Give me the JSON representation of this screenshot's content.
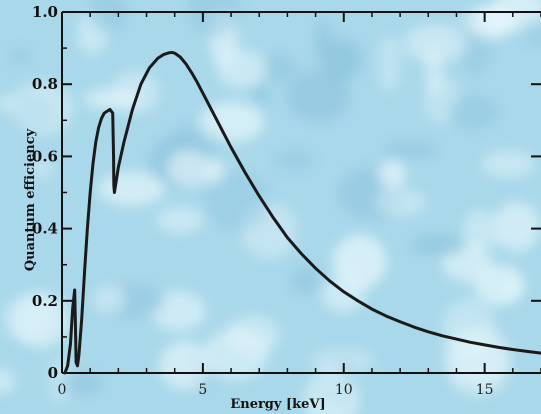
{
  "chart_data": {
    "type": "line",
    "title": "",
    "xlabel": "Energy [keV]",
    "ylabel": "Quantum efficiency",
    "xlim": [
      0,
      17
    ],
    "ylim": [
      0,
      1.0
    ],
    "x_ticks": [
      0,
      5,
      10,
      15
    ],
    "x_tick_labels": [
      "0",
      "5",
      "10",
      "15"
    ],
    "y_ticks": [
      0,
      0.2,
      0.4,
      0.6,
      0.8,
      1.0
    ],
    "y_tick_labels": [
      "0",
      "0.2",
      "0.4",
      "0.6",
      "0.8",
      "1.0"
    ],
    "grid": false,
    "legend": "none",
    "colors": {
      "line": "#1a1a1a",
      "background": "#bfe3f0"
    },
    "series": [
      {
        "x": [
          0.1,
          0.2,
          0.3,
          0.38,
          0.45,
          0.48,
          0.5,
          0.55,
          0.6,
          0.7,
          0.8,
          0.9,
          1.0,
          1.1,
          1.2,
          1.3,
          1.4,
          1.5,
          1.6,
          1.7,
          1.8,
          1.83,
          1.84,
          1.86,
          1.9,
          2.0,
          2.2,
          2.5,
          2.8,
          3.1,
          3.4,
          3.6,
          3.8,
          3.9,
          4.0,
          4.2,
          4.4,
          4.6,
          4.8,
          5.0,
          5.5,
          6.0,
          6.5,
          7.0,
          7.5,
          8.0,
          8.5,
          9.0,
          9.5,
          10.0,
          10.5,
          11.0,
          11.5,
          12.0,
          12.5,
          13.0,
          13.5,
          14.0,
          14.5,
          15.0,
          15.5,
          16.0,
          16.5,
          17.0
        ],
        "y": [
          0.0,
          0.02,
          0.08,
          0.18,
          0.23,
          0.12,
          0.03,
          0.02,
          0.05,
          0.15,
          0.28,
          0.4,
          0.5,
          0.58,
          0.64,
          0.68,
          0.705,
          0.72,
          0.725,
          0.73,
          0.72,
          0.6,
          0.52,
          0.5,
          0.52,
          0.57,
          0.64,
          0.73,
          0.8,
          0.845,
          0.872,
          0.882,
          0.887,
          0.888,
          0.886,
          0.875,
          0.856,
          0.832,
          0.805,
          0.775,
          0.7,
          0.625,
          0.555,
          0.49,
          0.43,
          0.375,
          0.33,
          0.29,
          0.255,
          0.225,
          0.2,
          0.177,
          0.158,
          0.142,
          0.127,
          0.114,
          0.103,
          0.094,
          0.085,
          0.078,
          0.071,
          0.065,
          0.06,
          0.055
        ]
      }
    ]
  }
}
